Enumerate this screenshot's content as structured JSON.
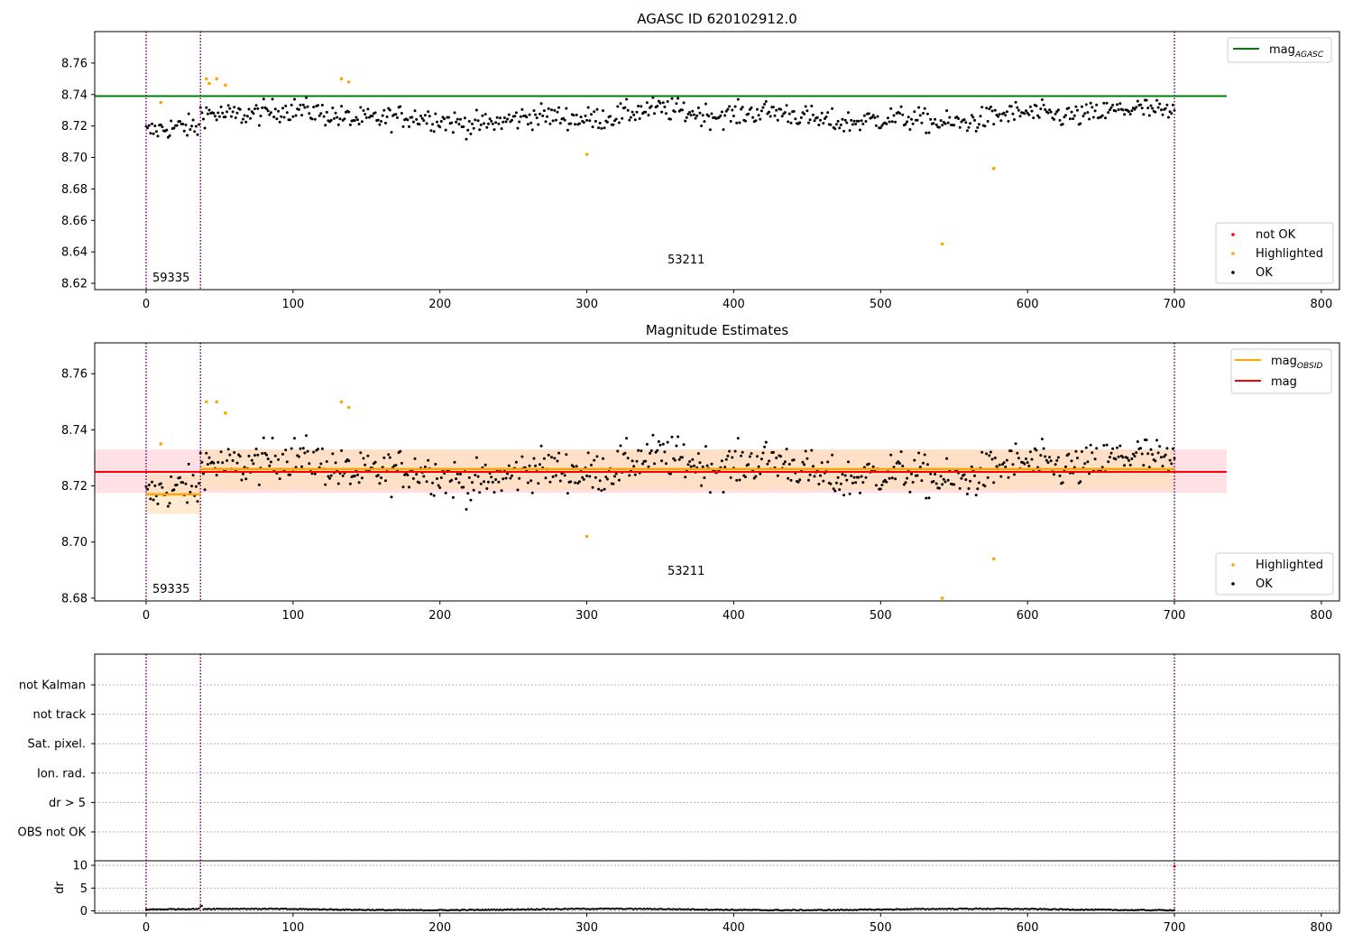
{
  "chart_data": [
    {
      "type": "scatter",
      "title": "AGASC ID 620102912.0",
      "xlim": [
        -35,
        812
      ],
      "ylim": [
        8.616,
        8.78
      ],
      "xticks": [
        "0",
        "100",
        "200",
        "300",
        "400",
        "500",
        "600",
        "700",
        "800"
      ],
      "yticks": [
        "8.62",
        "8.64",
        "8.66",
        "8.68",
        "8.70",
        "8.72",
        "8.74",
        "8.76"
      ],
      "vlines": [
        0,
        37,
        700
      ],
      "obsid_labels": [
        {
          "text": "59335",
          "x": 4,
          "y": 8.623
        },
        {
          "text": "53211",
          "x": 354,
          "y": 8.634
        }
      ],
      "legend_top": [
        {
          "label": "mag",
          "sub": "AGASC",
          "color": "#008000"
        }
      ],
      "legend_bottom": [
        {
          "label": "not OK",
          "color": "#ff0000"
        },
        {
          "label": "Highlighted",
          "color": "#ffa500"
        },
        {
          "label": "OK",
          "color": "#000000"
        }
      ],
      "mag_agasc": 8.739,
      "highlighted": [
        [
          10,
          8.735
        ],
        [
          41,
          8.75
        ],
        [
          43,
          8.747
        ],
        [
          48,
          8.75
        ],
        [
          54,
          8.746
        ],
        [
          133,
          8.75
        ],
        [
          138,
          8.748
        ],
        [
          300,
          8.702
        ],
        [
          542,
          8.645
        ],
        [
          577,
          8.693
        ]
      ],
      "ok_level_seg1": 8.717,
      "ok_level_seg2": 8.726,
      "ok_scatter_note": "approx. 700 black points scattered between 8.705 and 8.745"
    },
    {
      "type": "scatter",
      "title": "Magnitude Estimates",
      "xlim": [
        -35,
        812
      ],
      "ylim": [
        8.679,
        8.771
      ],
      "xticks": [
        "0",
        "100",
        "200",
        "300",
        "400",
        "500",
        "600",
        "700",
        "800"
      ],
      "yticks": [
        "8.68",
        "8.70",
        "8.72",
        "8.74",
        "8.76"
      ],
      "vlines": [
        0,
        37,
        700
      ],
      "obsid_labels": [
        {
          "text": "59335",
          "x": 4,
          "y": 8.6835
        },
        {
          "text": "53211",
          "x": 354,
          "y": 8.6895
        }
      ],
      "legend_top": [
        {
          "label": "mag",
          "sub": "OBSID",
          "color": "#ffa500"
        },
        {
          "label": "mag",
          "sub": "",
          "color": "#ff0000"
        }
      ],
      "legend_bottom": [
        {
          "label": "Highlighted",
          "color": "#ffa500"
        },
        {
          "label": "OK",
          "color": "#000000"
        }
      ],
      "mag": 8.725,
      "mag_band": [
        8.7175,
        8.733
      ],
      "mag_obsid": [
        {
          "x0": 0,
          "x1": 37,
          "value": 8.717,
          "band": [
            8.71,
            8.724
          ]
        },
        {
          "x0": 37,
          "x1": 700,
          "value": 8.726,
          "band": [
            8.7185,
            8.733
          ]
        }
      ],
      "highlighted": [
        [
          10,
          8.735
        ],
        [
          41,
          8.75
        ],
        [
          48,
          8.75
        ],
        [
          54,
          8.746
        ],
        [
          133,
          8.75
        ],
        [
          138,
          8.748
        ],
        [
          300,
          8.702
        ],
        [
          542,
          8.68
        ],
        [
          577,
          8.694
        ]
      ]
    },
    {
      "type": "scatter",
      "title": "",
      "xlim": [
        -35,
        812
      ],
      "xticks": [
        "0",
        "100",
        "200",
        "300",
        "400",
        "500",
        "600",
        "700",
        "800"
      ],
      "flags": [
        "not Kalman",
        "not track",
        "Sat. pixel.",
        "Ion. rad.",
        "dr > 5",
        "OBS not OK"
      ],
      "vlines": [
        0,
        37,
        700
      ],
      "dr_panel": {
        "ylabel": "dr",
        "yticks": [
          "0",
          "5",
          "10"
        ],
        "ylim": [
          -0.5,
          11
        ],
        "outlier": [
          700,
          9.8
        ],
        "level_note": "dr values near 0.1–0.6 for all observations"
      }
    }
  ],
  "colors": {
    "vline": "#7a007a",
    "ok": "#000000",
    "highlighted": "#ffa500",
    "not_ok": "#ff0000",
    "mag_agasc": "#008000",
    "mag": "#ff0000",
    "mag_obsid": "#ffa500"
  }
}
